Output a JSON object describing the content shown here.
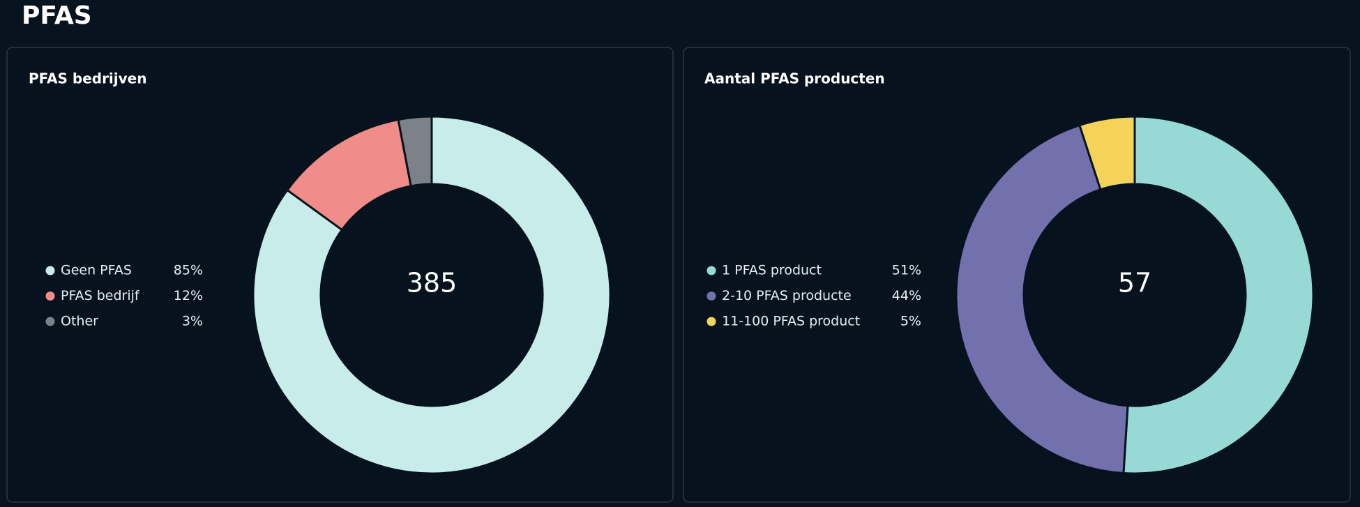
{
  "title": "PFAS",
  "chart_data": [
    {
      "type": "donut",
      "title": "PFAS bedrijven",
      "total": "385",
      "categories": [
        "Geen PFAS",
        "PFAS bedrijf",
        "Other"
      ],
      "values": [
        85,
        12,
        3
      ],
      "value_labels": [
        "85%",
        "12%",
        "3%"
      ],
      "colors": [
        "#c8ecea",
        "#f08c8a",
        "#7c8288"
      ]
    },
    {
      "type": "donut",
      "title": "Aantal PFAS producten",
      "total": "57",
      "categories": [
        "1 PFAS product",
        "2-10 PFAS producte",
        "11-100 PFAS product"
      ],
      "values": [
        51,
        44,
        5
      ],
      "value_labels": [
        "51%",
        "44%",
        "5%"
      ],
      "colors": [
        "#97d9d5",
        "#7370ae",
        "#f5d35a"
      ]
    }
  ]
}
